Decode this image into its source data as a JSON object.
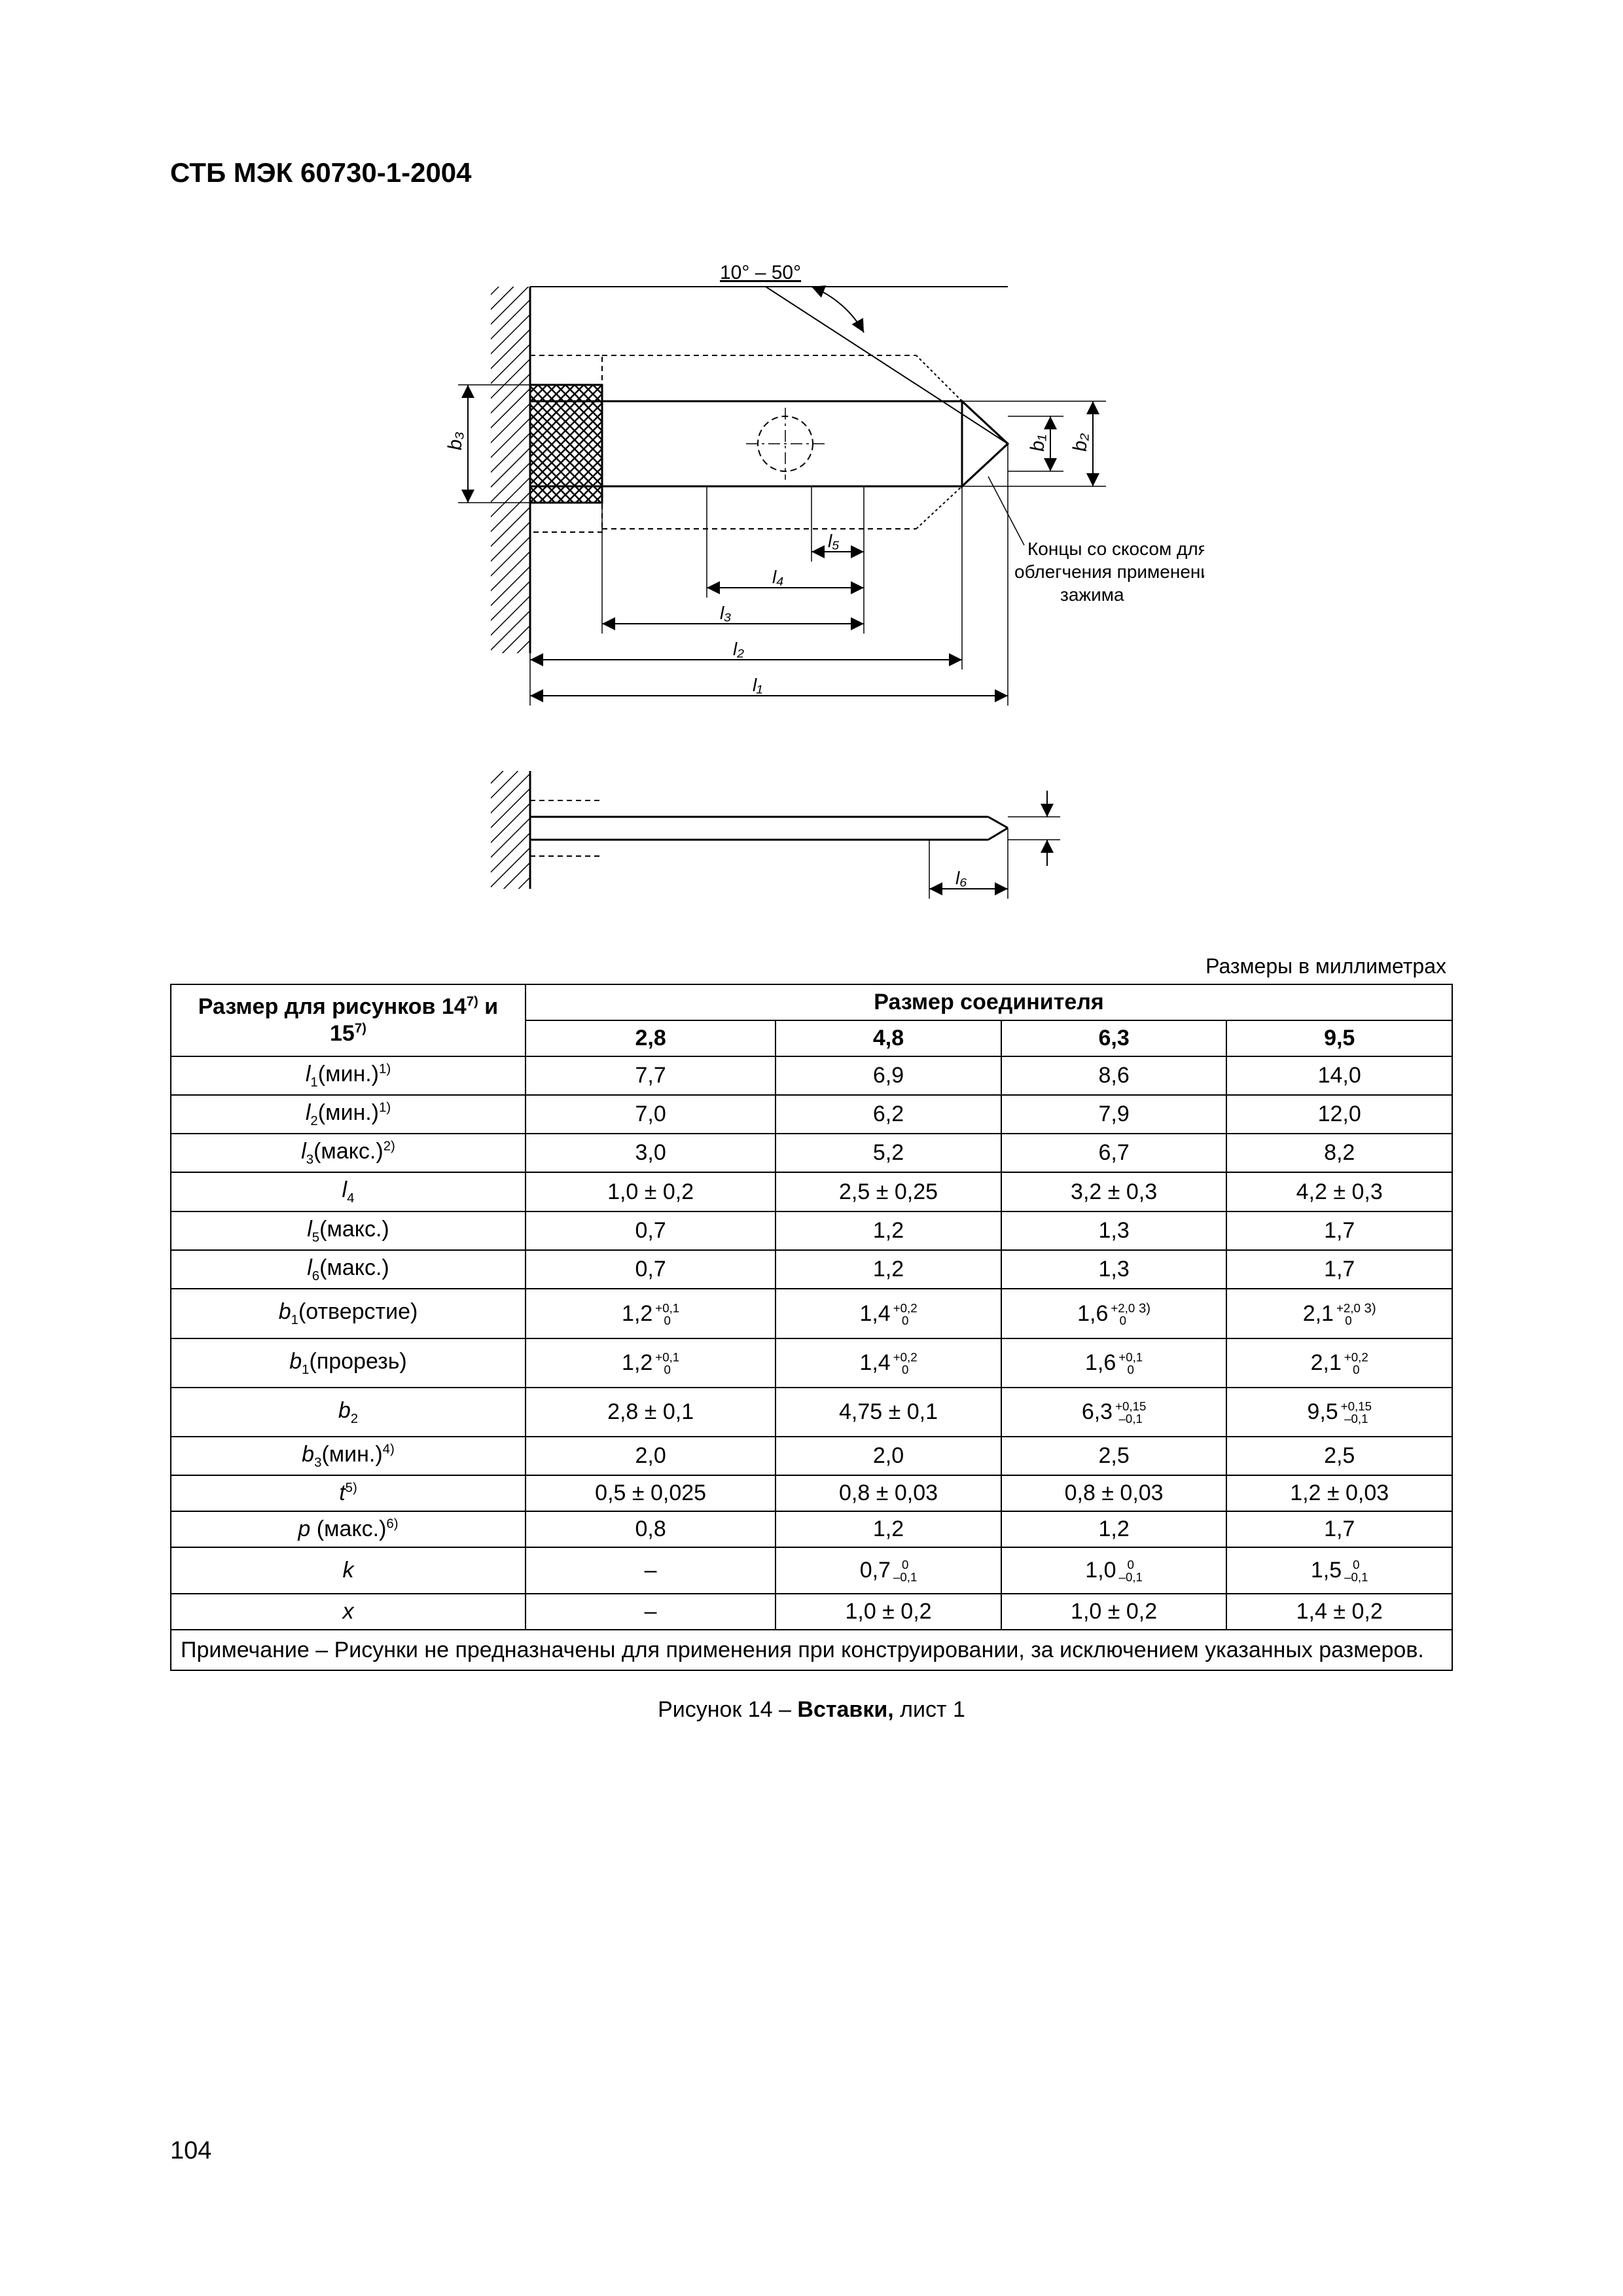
{
  "header": "СТБ МЭК 60730-1-2004",
  "units_label": "Размеры в миллиметрах",
  "page_number": "104",
  "caption_prefix": "Рисунок 14 – ",
  "caption_bold": "Вставки,",
  "caption_suffix": " лист 1",
  "diagram": {
    "angle_label": "10° – 50°",
    "note_line1": "Концы со скосом для",
    "note_line2": "облегчения применения",
    "note_line3": "зажима",
    "b1": "b₁",
    "b2": "b₂",
    "b3": "b₃",
    "l1": "l₁",
    "l2": "l₂",
    "l3": "l₃",
    "l4": "l₄",
    "l5": "l₅",
    "l6": "l₆",
    "colors": {
      "stroke": "#000000",
      "hatch": "#000000",
      "bg": "#ffffff"
    }
  },
  "table": {
    "header_left_a": "Размер для рисунков 14",
    "header_left_b": " и 15",
    "header_sup": "7)",
    "header_right": "Размер соединителя",
    "cols": [
      "2,8",
      "4,8",
      "6,3",
      "9,5"
    ],
    "rows": [
      {
        "label_pre": "l",
        "label_sub": "1",
        "label_post": "(мин.)",
        "label_sup": "1)",
        "cells": [
          "7,7",
          "6,9",
          "8,6",
          "14,0"
        ]
      },
      {
        "label_pre": "l",
        "label_sub": "2",
        "label_post": "(мин.)",
        "label_sup": "1)",
        "cells": [
          "7,0",
          "6,2",
          "7,9",
          "12,0"
        ]
      },
      {
        "label_pre": "l",
        "label_sub": "3",
        "label_post": "(макс.)",
        "label_sup": "2)",
        "cells": [
          "3,0",
          "5,2",
          "6,7",
          "8,2"
        ]
      },
      {
        "label_pre": "l",
        "label_sub": "4",
        "label_post": "",
        "label_sup": "",
        "cells": [
          "1,0 ± 0,2",
          "2,5 ± 0,25",
          "3,2 ± 0,3",
          "4,2 ± 0,3"
        ]
      },
      {
        "label_pre": "l",
        "label_sub": "5",
        "label_post": "(макс.)",
        "label_sup": "",
        "cells": [
          "0,7",
          "1,2",
          "1,3",
          "1,7"
        ]
      },
      {
        "label_pre": "l",
        "label_sub": "6",
        "label_post": "(макс.)",
        "label_sup": "",
        "cells": [
          "0,7",
          "1,2",
          "1,3",
          "1,7"
        ]
      }
    ],
    "tol_rows": [
      {
        "label_pre": "b",
        "label_sub": "1",
        "label_post": "(отверстие)",
        "label_sup": "",
        "cells": [
          {
            "v": "1,2",
            "up": "+0,1",
            "dn": "0",
            "note": ""
          },
          {
            "v": "1,4",
            "up": "+0,2",
            "dn": "0",
            "note": ""
          },
          {
            "v": "1,6",
            "up": "+2,0",
            "dn": "0",
            "note": "3)"
          },
          {
            "v": "2,1",
            "up": "+2,0",
            "dn": "0",
            "note": "3)"
          }
        ]
      },
      {
        "label_pre": "b",
        "label_sub": "1",
        "label_post": "(прорезь)",
        "label_sup": "",
        "cells": [
          {
            "v": "1,2",
            "up": "+0,1",
            "dn": "0",
            "note": ""
          },
          {
            "v": "1,4",
            "up": "+0,2",
            "dn": "0",
            "note": ""
          },
          {
            "v": "1,6",
            "up": "+0,1",
            "dn": "0",
            "note": ""
          },
          {
            "v": "2,1",
            "up": "+0,2",
            "dn": "0",
            "note": ""
          }
        ]
      },
      {
        "label_pre": "b",
        "label_sub": "2",
        "label_post": "",
        "label_sup": "",
        "cells": [
          {
            "v": "2,8 ± 0,1",
            "up": "",
            "dn": "",
            "note": ""
          },
          {
            "v": "4,75 ± 0,1",
            "up": "",
            "dn": "",
            "note": ""
          },
          {
            "v": "6,3",
            "up": "+0,15",
            "dn": "–0,1",
            "note": ""
          },
          {
            "v": "9,5",
            "up": "+0,15",
            "dn": "–0,1",
            "note": ""
          }
        ]
      }
    ],
    "rows2": [
      {
        "label_pre": "b",
        "label_sub": "3",
        "label_post": "(мин.)",
        "label_sup": "4)",
        "cells": [
          "2,0",
          "2,0",
          "2,5",
          "2,5"
        ]
      },
      {
        "label_pre": "t",
        "label_sub": "",
        "label_post": "",
        "label_sup": "5)",
        "cells": [
          "0,5 ± 0,025",
          "0,8 ± 0,03",
          "0,8 ± 0,03",
          "1,2 ± 0,03"
        ]
      },
      {
        "label_pre": "p",
        "label_sub": "",
        "label_post": " (макс.)",
        "label_sup": "6)",
        "cells": [
          "0,8",
          "1,2",
          "1,2",
          "1,7"
        ]
      }
    ],
    "tol_rows2": [
      {
        "label_pre": "k",
        "label_sub": "",
        "label_post": "",
        "label_sup": "",
        "cells": [
          {
            "v": "–",
            "up": "",
            "dn": "",
            "note": ""
          },
          {
            "v": "0,7",
            "up": "0",
            "dn": "–0,1",
            "note": ""
          },
          {
            "v": "1,0",
            "up": "0",
            "dn": "–0,1",
            "note": ""
          },
          {
            "v": "1,5",
            "up": "0",
            "dn": "–0,1",
            "note": ""
          }
        ]
      }
    ],
    "rows3": [
      {
        "label_pre": "x",
        "label_sub": "",
        "label_post": "",
        "label_sup": "",
        "cells": [
          "–",
          "1,0 ± 0,2",
          "1,0 ± 0,2",
          "1,4 ± 0,2"
        ]
      }
    ],
    "note": "Примечание – Рисунки не предназначены для применения при конструировании, за исключением указанных размеров."
  }
}
